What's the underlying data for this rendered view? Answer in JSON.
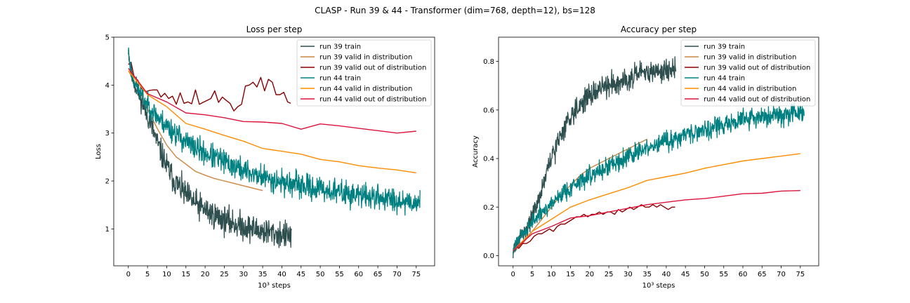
{
  "suptitle": "CLASP - Run 39 & 44 - Transformer (dim=768, depth=12), bs=128",
  "chart_data": [
    {
      "type": "line",
      "title": "Loss per step",
      "xlabel": "10³ steps",
      "ylabel": "Loss",
      "xlim": [
        -3.8,
        79.8
      ],
      "ylim": [
        0.23,
        5.0
      ],
      "xticks": [
        0,
        5,
        10,
        15,
        20,
        25,
        30,
        35,
        40,
        45,
        50,
        55,
        60,
        65,
        70,
        75
      ],
      "yticks": [
        1,
        2,
        3,
        4,
        5
      ],
      "legend": "top-right",
      "grid": false,
      "series": [
        {
          "name": "run 39 train",
          "color": "#2f4f4f",
          "noisy": true,
          "noise": 0.25,
          "seed": 11,
          "x": [
            0,
            0.5,
            1,
            2,
            3,
            4,
            5,
            6,
            8,
            10,
            12,
            15,
            18,
            22,
            26,
            30,
            35,
            40,
            42.5
          ],
          "y": [
            4.75,
            4.35,
            4.15,
            3.95,
            3.75,
            3.55,
            3.35,
            3.15,
            2.7,
            2.3,
            2.0,
            1.7,
            1.5,
            1.3,
            1.15,
            1.05,
            0.95,
            0.88,
            0.85
          ]
        },
        {
          "name": "run 39 valid in distribution",
          "color": "#cd853f",
          "noisy": false,
          "x": [
            0,
            2.5,
            5,
            7.5,
            10,
            12.5,
            15,
            17.5,
            20,
            22.5,
            25,
            27.5,
            30,
            32.5,
            35
          ],
          "y": [
            4.3,
            3.95,
            3.5,
            3.1,
            2.75,
            2.5,
            2.35,
            2.2,
            2.12,
            2.05,
            2.0,
            1.95,
            1.9,
            1.85,
            1.8
          ]
        },
        {
          "name": "run 39 valid out of distribution",
          "color": "#8b0000",
          "noisy": false,
          "x": [
            0,
            0.7,
            1.5,
            2.5,
            3.5,
            4.5,
            5.5,
            6.5,
            7.5,
            8.5,
            9.5,
            10.5,
            11.5,
            12.5,
            13.5,
            14.5,
            15.5,
            16.5,
            17.5,
            18.5,
            19.5,
            20.5,
            21.5,
            22.5,
            23.5,
            24.5,
            25.5,
            26.5,
            27.5,
            28.5,
            29.5,
            30.5,
            31.5,
            32.5,
            33.5,
            34.5,
            35.5,
            36.5,
            37.5,
            38.5,
            39.5,
            40.5,
            41.5,
            42.3
          ],
          "y": [
            4.43,
            4.48,
            4.17,
            4.1,
            3.92,
            3.86,
            3.89,
            3.9,
            3.9,
            3.75,
            3.83,
            3.72,
            3.77,
            3.6,
            3.84,
            3.62,
            3.65,
            3.61,
            3.9,
            3.6,
            3.64,
            3.68,
            3.72,
            3.88,
            3.64,
            3.75,
            3.68,
            3.62,
            3.46,
            3.55,
            3.6,
            3.98,
            4.0,
            4.06,
            3.96,
            4.16,
            3.88,
            4.12,
            4.06,
            3.8,
            3.8,
            3.85,
            3.65,
            3.62
          ]
        },
        {
          "name": "run 44 train",
          "color": "#008080",
          "noisy": true,
          "noise": 0.22,
          "seed": 23,
          "x": [
            0,
            0.5,
            1,
            2,
            4,
            6,
            8,
            10,
            13,
            16,
            20,
            25,
            30,
            35,
            40,
            45,
            50,
            55,
            60,
            65,
            70,
            76
          ],
          "y": [
            4.75,
            4.4,
            4.2,
            4.0,
            3.7,
            3.5,
            3.3,
            3.15,
            2.95,
            2.75,
            2.58,
            2.4,
            2.22,
            2.08,
            1.98,
            1.9,
            1.83,
            1.76,
            1.7,
            1.66,
            1.6,
            1.55
          ]
        },
        {
          "name": "run 44 valid in distribution",
          "color": "#ff8c00",
          "noisy": false,
          "x": [
            0,
            5,
            10,
            15,
            20,
            25,
            30,
            35,
            40,
            45,
            50,
            55,
            60,
            65,
            70,
            75
          ],
          "y": [
            4.3,
            3.8,
            3.55,
            3.2,
            3.08,
            2.95,
            2.83,
            2.68,
            2.62,
            2.56,
            2.45,
            2.4,
            2.32,
            2.27,
            2.23,
            2.17
          ]
        },
        {
          "name": "run 44 valid out of distribution",
          "color": "#dc143c",
          "noisy": false,
          "x": [
            0,
            5,
            10,
            15,
            20,
            25,
            30,
            35,
            40,
            45,
            50,
            55,
            60,
            65,
            70,
            75
          ],
          "y": [
            4.35,
            3.82,
            3.65,
            3.42,
            3.38,
            3.32,
            3.24,
            3.23,
            3.2,
            3.08,
            3.19,
            3.15,
            3.1,
            3.05,
            3.0,
            3.04
          ]
        }
      ]
    },
    {
      "type": "line",
      "title": "Accuracy per step",
      "xlabel": "10³ steps",
      "ylabel": "Accuracy",
      "xlim": [
        -3.8,
        79.8
      ],
      "ylim": [
        -0.042,
        0.9
      ],
      "xticks": [
        0,
        5,
        10,
        15,
        20,
        25,
        30,
        35,
        40,
        45,
        50,
        55,
        60,
        65,
        70,
        75
      ],
      "yticks": [
        0.0,
        0.2,
        0.4,
        0.6,
        0.8
      ],
      "ytick_labels": [
        "0.0",
        "0.2",
        "0.4",
        "0.6",
        "0.8"
      ],
      "legend": "top-right",
      "grid": false,
      "series": [
        {
          "name": "run 39 train",
          "color": "#2f4f4f",
          "noisy": true,
          "noise": 0.04,
          "seed": 31,
          "x": [
            0,
            1,
            2,
            3,
            4,
            5,
            6,
            7,
            8,
            9,
            10,
            12,
            14,
            16,
            18,
            20,
            23,
            26,
            30,
            34,
            38,
            42.5
          ],
          "y": [
            0.02,
            0.05,
            0.08,
            0.1,
            0.13,
            0.16,
            0.2,
            0.25,
            0.3,
            0.35,
            0.4,
            0.48,
            0.55,
            0.6,
            0.63,
            0.66,
            0.69,
            0.71,
            0.73,
            0.75,
            0.76,
            0.77
          ]
        },
        {
          "name": "run 39 valid in distribution",
          "color": "#cd853f",
          "noisy": false,
          "x": [
            0,
            2.5,
            5,
            7.5,
            10,
            12.5,
            15,
            17.5,
            20,
            22.5,
            25,
            27.5,
            30,
            32.5,
            35
          ],
          "y": [
            0.015,
            0.05,
            0.1,
            0.15,
            0.2,
            0.25,
            0.29,
            0.33,
            0.36,
            0.38,
            0.4,
            0.42,
            0.44,
            0.46,
            0.48
          ]
        },
        {
          "name": "run 39 valid out of distribution",
          "color": "#8b0000",
          "noisy": false,
          "x": [
            0,
            0.7,
            1.5,
            2.5,
            3.5,
            4.5,
            5.5,
            6.5,
            7.5,
            8.5,
            9.5,
            10.5,
            11.5,
            12.5,
            13.5,
            14.5,
            15.5,
            16.5,
            17.5,
            18.5,
            19.5,
            20.5,
            21.5,
            22.5,
            23.5,
            24.5,
            25.5,
            26.5,
            27.5,
            28.5,
            29.5,
            30.5,
            31.5,
            32.5,
            33.5,
            34.5,
            35.5,
            36.5,
            37.5,
            38.5,
            39.5,
            40.5,
            41.5,
            42.3
          ],
          "y": [
            0.01,
            0.04,
            0.03,
            0.05,
            0.05,
            0.06,
            0.08,
            0.09,
            0.09,
            0.1,
            0.11,
            0.1,
            0.12,
            0.13,
            0.13,
            0.14,
            0.15,
            0.16,
            0.16,
            0.17,
            0.16,
            0.17,
            0.17,
            0.18,
            0.17,
            0.18,
            0.18,
            0.17,
            0.19,
            0.18,
            0.19,
            0.2,
            0.19,
            0.2,
            0.21,
            0.2,
            0.2,
            0.21,
            0.2,
            0.21,
            0.2,
            0.19,
            0.2,
            0.2
          ]
        },
        {
          "name": "run 44 train",
          "color": "#008080",
          "noisy": true,
          "noise": 0.035,
          "seed": 47,
          "x": [
            0,
            1,
            2,
            3,
            5,
            7,
            9,
            11,
            13,
            15,
            18,
            21,
            25,
            30,
            35,
            40,
            45,
            50,
            55,
            60,
            65,
            70,
            76
          ],
          "y": [
            0.02,
            0.05,
            0.08,
            0.1,
            0.14,
            0.17,
            0.2,
            0.23,
            0.26,
            0.28,
            0.31,
            0.34,
            0.37,
            0.41,
            0.44,
            0.47,
            0.5,
            0.52,
            0.54,
            0.56,
            0.57,
            0.58,
            0.6
          ]
        },
        {
          "name": "run 44 valid in distribution",
          "color": "#ff8c00",
          "noisy": false,
          "x": [
            0,
            5,
            10,
            15,
            20,
            25,
            30,
            35,
            40,
            45,
            50,
            55,
            60,
            65,
            70,
            75
          ],
          "y": [
            0.02,
            0.1,
            0.15,
            0.2,
            0.23,
            0.255,
            0.28,
            0.31,
            0.325,
            0.34,
            0.36,
            0.375,
            0.39,
            0.4,
            0.41,
            0.42
          ]
        },
        {
          "name": "run 44 valid out of distribution",
          "color": "#dc143c",
          "noisy": false,
          "x": [
            0,
            5,
            10,
            15,
            20,
            25,
            30,
            35,
            40,
            45,
            50,
            55,
            60,
            65,
            70,
            75
          ],
          "y": [
            0.02,
            0.09,
            0.12,
            0.155,
            0.165,
            0.18,
            0.195,
            0.21,
            0.22,
            0.23,
            0.235,
            0.245,
            0.255,
            0.257,
            0.266,
            0.268
          ]
        }
      ]
    }
  ]
}
